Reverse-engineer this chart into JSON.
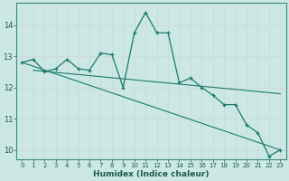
{
  "xlabel": "Humidex (Indice chaleur)",
  "background_color": "#cce8e4",
  "grid_color": "#ccddda",
  "line_color": "#1a7a6e",
  "x_values": [
    0,
    1,
    2,
    3,
    4,
    5,
    6,
    7,
    8,
    9,
    10,
    11,
    12,
    13,
    14,
    15,
    16,
    17,
    18,
    19,
    20,
    21,
    22,
    23
  ],
  "y_main": [
    12.8,
    12.9,
    12.5,
    12.6,
    12.9,
    12.6,
    12.55,
    13.1,
    13.05,
    12.0,
    13.75,
    14.4,
    13.75,
    13.75,
    12.15,
    12.3,
    12.0,
    11.75,
    11.45,
    11.45,
    10.8,
    10.55,
    9.8,
    10.0
  ],
  "trend1_x": [
    0,
    23
  ],
  "trend1_y": [
    12.8,
    10.0
  ],
  "trend2_x": [
    1,
    23
  ],
  "trend2_y": [
    12.55,
    11.8
  ],
  "ylim": [
    9.7,
    14.7
  ],
  "xlim": [
    -0.5,
    23.5
  ],
  "yticks": [
    10,
    11,
    12,
    13,
    14
  ],
  "xticks": [
    0,
    1,
    2,
    3,
    4,
    5,
    6,
    7,
    8,
    9,
    10,
    11,
    12,
    13,
    14,
    15,
    16,
    17,
    18,
    19,
    20,
    21,
    22,
    23
  ]
}
